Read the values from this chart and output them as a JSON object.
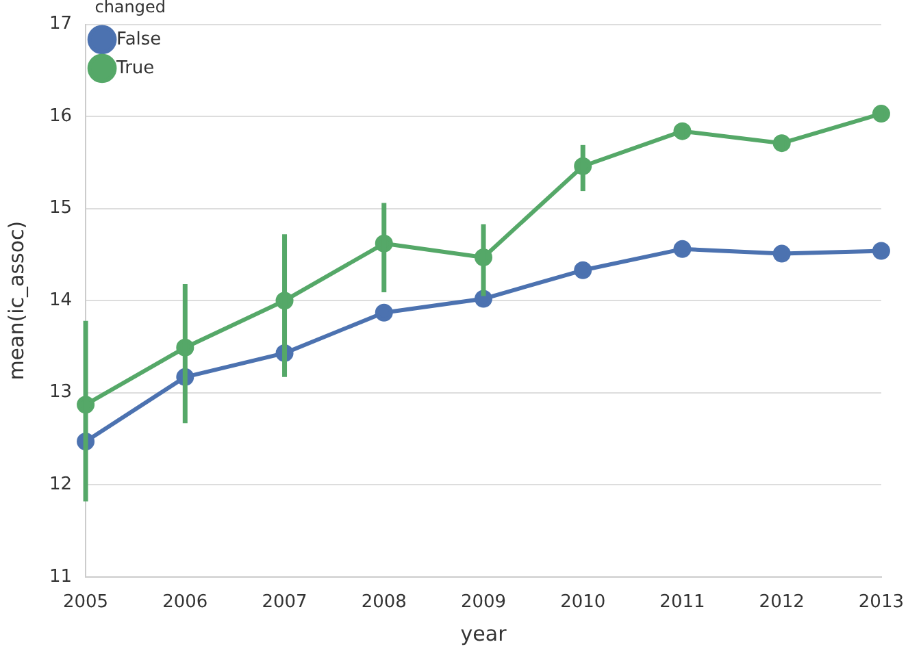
{
  "chart_data": {
    "type": "line",
    "xlabel": "year",
    "ylabel": "mean(ic_assoc)",
    "legend_title": "changed",
    "categories": [
      "2005",
      "2006",
      "2007",
      "2008",
      "2009",
      "2010",
      "2011",
      "2012",
      "2013"
    ],
    "series": [
      {
        "name": "False",
        "color": "#4c72b0",
        "values": [
          12.47,
          13.17,
          13.43,
          13.87,
          14.02,
          14.33,
          14.56,
          14.51,
          14.54
        ]
      },
      {
        "name": "True",
        "color": "#55a868",
        "values": [
          12.87,
          13.49,
          14.0,
          14.62,
          14.47,
          15.46,
          15.84,
          15.71,
          16.03
        ],
        "errors": [
          [
            11.82,
            13.78
          ],
          [
            12.67,
            14.18
          ],
          [
            13.17,
            14.72
          ],
          [
            14.09,
            15.06
          ],
          [
            14.05,
            14.83
          ],
          [
            15.19,
            15.69
          ],
          [
            15.75,
            15.9
          ],
          [
            15.64,
            15.78
          ],
          [
            15.98,
            16.08
          ]
        ]
      }
    ],
    "ylim": [
      11,
      17
    ],
    "yticks": [
      11,
      12,
      13,
      14,
      15,
      16,
      17
    ],
    "grid": "y",
    "legend": "top left",
    "marker": "circle",
    "line_style": "solid"
  }
}
